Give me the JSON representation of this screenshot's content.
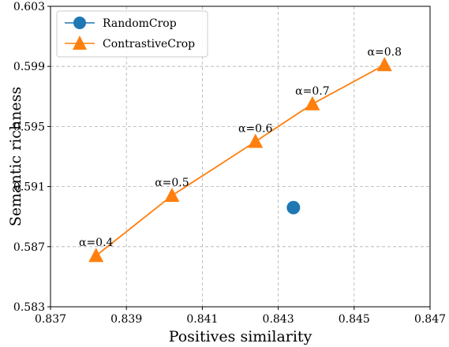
{
  "chart_data": {
    "type": "scatter",
    "xlabel": "Positives similarity",
    "ylabel": "Semantic richness",
    "xlim": [
      0.837,
      0.847
    ],
    "ylim": [
      0.583,
      0.603
    ],
    "xticks": [
      "0.837",
      "0.839",
      "0.841",
      "0.843",
      "0.845",
      "0.847"
    ],
    "yticks": [
      "0.583",
      "0.587",
      "0.591",
      "0.595",
      "0.599",
      "0.603"
    ],
    "grid": true,
    "legend_position": "top-left",
    "series": [
      {
        "name": "RandomCrop",
        "marker": "circle",
        "color": "#1f77b4",
        "points": [
          {
            "x": 0.8434,
            "y": 0.5896
          }
        ]
      },
      {
        "name": "ContrastiveCrop",
        "marker": "triangle",
        "color": "#ff7f0e",
        "line": true,
        "points": [
          {
            "x": 0.8382,
            "y": 0.5864,
            "label": "α=0.4"
          },
          {
            "x": 0.8402,
            "y": 0.5904,
            "label": "α=0.5"
          },
          {
            "x": 0.8424,
            "y": 0.594,
            "label": "α=0.6"
          },
          {
            "x": 0.8439,
            "y": 0.5965,
            "label": "α=0.7"
          },
          {
            "x": 0.8458,
            "y": 0.5991,
            "label": "α=0.8"
          }
        ]
      }
    ]
  }
}
